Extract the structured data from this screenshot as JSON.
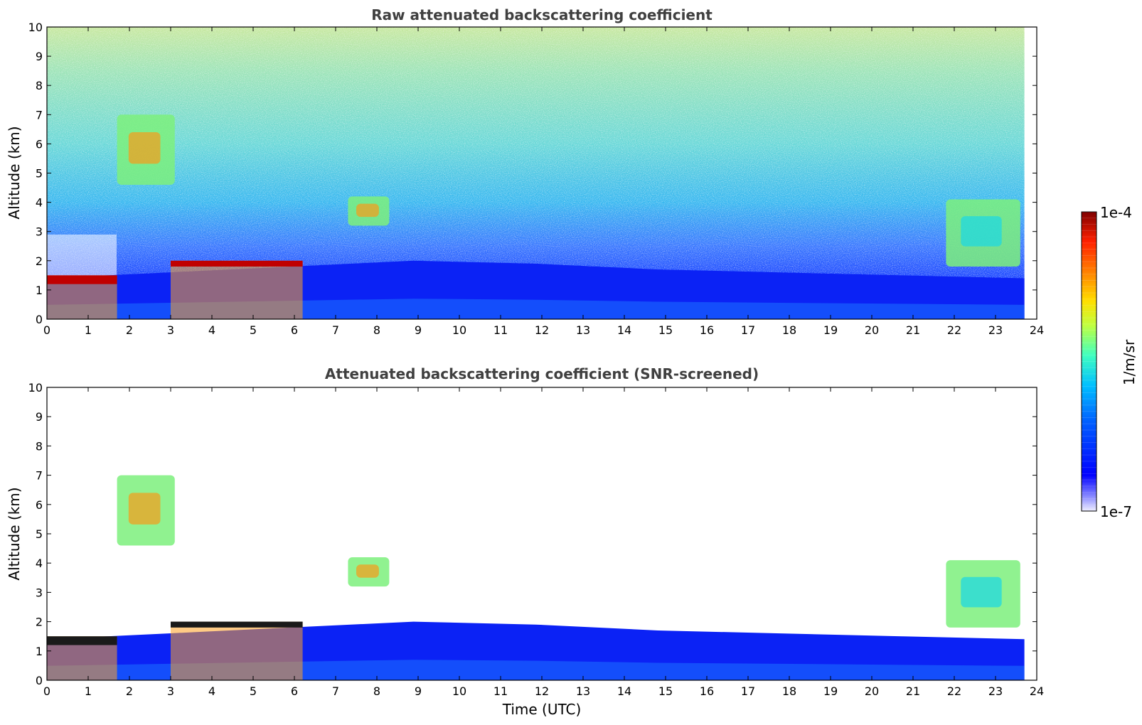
{
  "chart_data": [
    {
      "type": "heatmap",
      "title": "Raw attenuated backscattering coefficient",
      "xlabel": "",
      "ylabel": "Altitude (km)",
      "xlim": [
        0,
        24
      ],
      "ylim": [
        0,
        10
      ],
      "xticks": [
        "0",
        "1",
        "2",
        "3",
        "4",
        "5",
        "6",
        "7",
        "8",
        "9",
        "10",
        "11",
        "12",
        "13",
        "14",
        "15",
        "16",
        "17",
        "18",
        "19",
        "20",
        "21",
        "22",
        "23",
        "24"
      ],
      "yticks": [
        "0",
        "1",
        "2",
        "3",
        "4",
        "5",
        "6",
        "7",
        "8",
        "9",
        "10"
      ],
      "data_end_time": 23.7,
      "features": [
        {
          "kind": "boundary_layer",
          "t": [
            0,
            23.7
          ],
          "alt_top_km": [
            1.4,
            1.6,
            1.8,
            2.0,
            1.9,
            1.7,
            1.6,
            1.5,
            1.4
          ]
        },
        {
          "kind": "cloud_layer",
          "t": [
            0,
            1.7
          ],
          "alt_km": [
            1.2,
            1.5
          ],
          "level": "high"
        },
        {
          "kind": "cloud_layer",
          "t": [
            3.0,
            6.2
          ],
          "alt_km": [
            1.8,
            2.0
          ],
          "level": "high"
        },
        {
          "kind": "aerosol",
          "t": [
            1.7,
            3.1
          ],
          "alt_km": [
            4.6,
            7.0
          ],
          "level": "moderate"
        },
        {
          "kind": "aerosol",
          "t": [
            7.3,
            8.3
          ],
          "alt_km": [
            3.2,
            4.2
          ],
          "level": "moderate"
        },
        {
          "kind": "aerosol",
          "t": [
            21.8,
            23.6
          ],
          "alt_km": [
            1.8,
            4.1
          ],
          "level": "low"
        }
      ]
    },
    {
      "type": "heatmap",
      "title": "Attenuated backscattering coefficient (SNR-screened)",
      "xlabel": "Time (UTC)",
      "ylabel": "Altitude (km)",
      "xlim": [
        0,
        24
      ],
      "ylim": [
        0,
        10
      ],
      "xticks": [
        "0",
        "1",
        "2",
        "3",
        "4",
        "5",
        "6",
        "7",
        "8",
        "9",
        "10",
        "11",
        "12",
        "13",
        "14",
        "15",
        "16",
        "17",
        "18",
        "19",
        "20",
        "21",
        "22",
        "23",
        "24"
      ],
      "yticks": [
        "0",
        "1",
        "2",
        "3",
        "4",
        "5",
        "6",
        "7",
        "8",
        "9",
        "10"
      ],
      "data_end_time": 23.7,
      "features": [
        {
          "kind": "boundary_layer",
          "t": [
            0,
            23.7
          ],
          "alt_top_km": [
            1.4,
            1.6,
            1.8,
            2.0,
            1.9,
            1.7,
            1.6,
            1.5,
            1.4
          ]
        },
        {
          "kind": "cloud_layer",
          "t": [
            0,
            1.7
          ],
          "alt_km": [
            1.2,
            1.5
          ],
          "level": "saturated"
        },
        {
          "kind": "cloud_layer",
          "t": [
            3.0,
            6.2
          ],
          "alt_km": [
            1.8,
            2.0
          ],
          "level": "saturated"
        },
        {
          "kind": "aerosol",
          "t": [
            1.7,
            3.1
          ],
          "alt_km": [
            4.6,
            7.0
          ],
          "level": "moderate"
        },
        {
          "kind": "aerosol",
          "t": [
            7.3,
            8.3
          ],
          "alt_km": [
            3.2,
            4.2
          ],
          "level": "moderate"
        },
        {
          "kind": "aerosol",
          "t": [
            21.8,
            23.6
          ],
          "alt_km": [
            1.8,
            4.1
          ],
          "level": "low"
        }
      ]
    }
  ],
  "colorbar": {
    "label": "1/m/sr",
    "max_label": "1e-4",
    "min_label": "1e-7",
    "scale": "log",
    "colormap": "jet",
    "colors": [
      "#eeeeff",
      "#8888ff",
      "#0000ff",
      "#0060ff",
      "#00c0ff",
      "#40ffc0",
      "#c0ff40",
      "#ffe000",
      "#ff8000",
      "#ff2000",
      "#800000"
    ]
  }
}
